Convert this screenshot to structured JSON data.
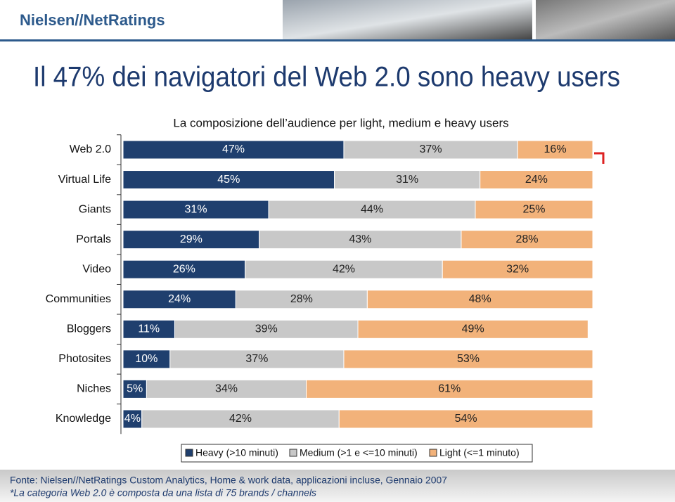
{
  "header": {
    "logo": "Nielsen//NetRatings"
  },
  "title": "Il 47% dei navigatori del Web 2.0 sono heavy users",
  "chart_data": {
    "type": "stacked-bar-horizontal",
    "title": "La composizione dell’audience per light, medium e heavy users",
    "categories": [
      "Web 2.0",
      "Virtual Life",
      "Giants",
      "Portals",
      "Video",
      "Communities",
      "Bloggers",
      "Photosites",
      "Niches",
      "Knowledge"
    ],
    "xlim": [
      0,
      100
    ],
    "legend": "bottom",
    "series": [
      {
        "name": "Heavy (>10 minuti)",
        "color": "#1f3f6e",
        "label_color": "#ffffff",
        "values": [
          47,
          45,
          31,
          29,
          26,
          24,
          11,
          10,
          5,
          4
        ],
        "value_labels": [
          "47%",
          "45%",
          "31%",
          "29%",
          "26%",
          "24%",
          "11%",
          "10%",
          "5%",
          "4%"
        ]
      },
      {
        "name": "Medium (>1 e <=10 minuti)",
        "color": "#c8c8c8",
        "label_color": "#222222",
        "values": [
          37,
          31,
          44,
          43,
          42,
          28,
          39,
          37,
          34,
          42
        ],
        "value_labels": [
          "37%",
          "31%",
          "44%",
          "43%",
          "42%",
          "28%",
          "39%",
          "37%",
          "34%",
          "42%"
        ]
      },
      {
        "name": "Light (<=1 minuto)",
        "color": "#f2b27a",
        "label_color": "#222222",
        "values": [
          16,
          24,
          25,
          28,
          32,
          48,
          49,
          53,
          61,
          54
        ],
        "value_labels": [
          "16%",
          "24%",
          "25%",
          "28%",
          "32%",
          "48%",
          "49%",
          "53%",
          "61%",
          "54%"
        ]
      }
    ]
  },
  "footer": {
    "source": "Fonte: Nielsen//NetRatings Custom Analytics, Home & work data, applicazioni incluse, Gennaio 2007",
    "note": "*La categoria Web 2.0 è composta da una lista di 75 brands / channels"
  }
}
